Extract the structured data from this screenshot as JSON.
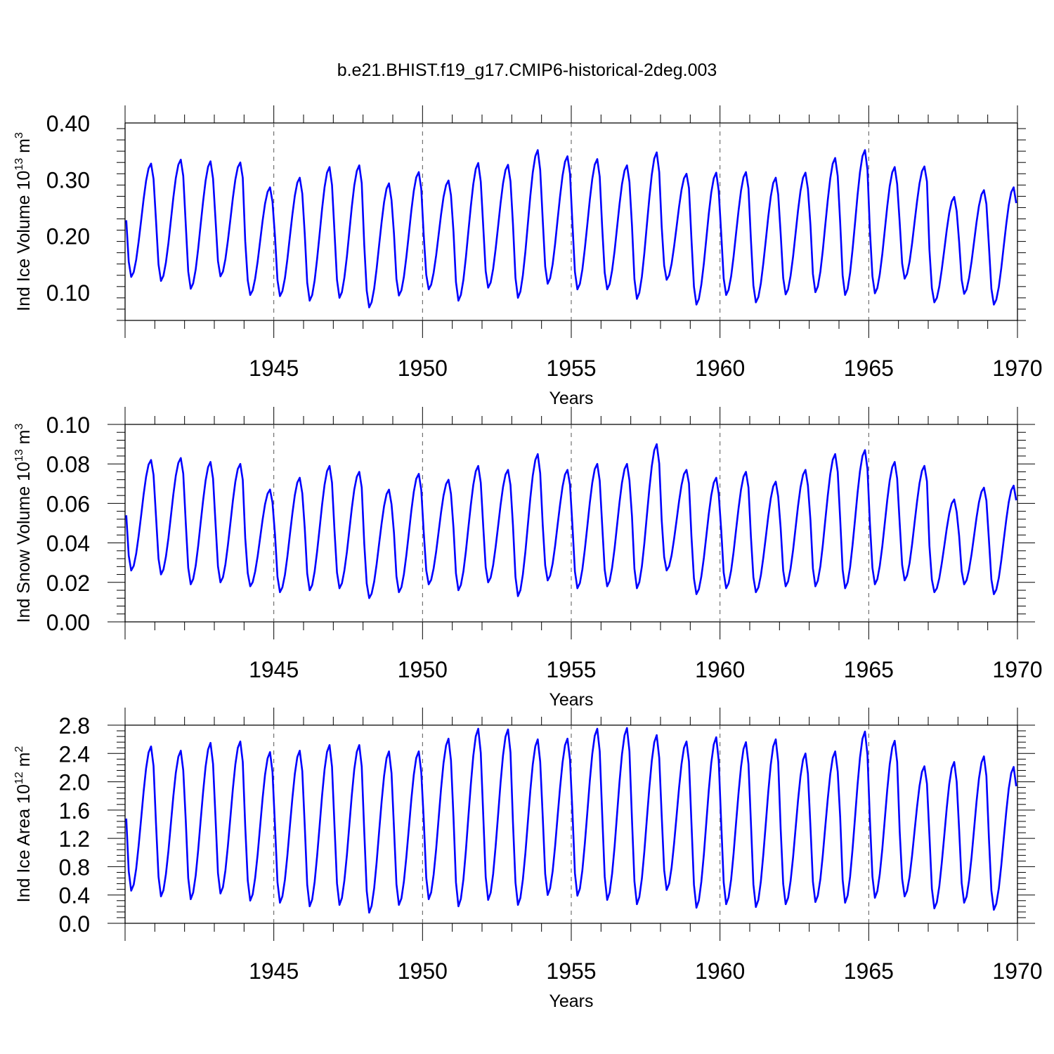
{
  "title": "b.e21.BHIST.f19_g17.CMIP6-historical-2deg.003",
  "colors": {
    "line": "#0000ff",
    "axis": "#000000",
    "refline": "#555555"
  },
  "chart_data": [
    {
      "type": "line",
      "ylabel": "Ind Ice Volume 10",
      "ylabel_exp": "13",
      "ylabel_unit": " m",
      "ylabel_unit_exp": "3",
      "xlabel": "Years",
      "xlim": [
        1940,
        1970
      ],
      "ylim": [
        0.05,
        0.4
      ],
      "yticks": [
        0.1,
        0.2,
        0.3,
        0.4
      ],
      "ytick_labels": [
        "0.10",
        "0.20",
        "0.30",
        "0.40"
      ],
      "xticks": [
        1945,
        1950,
        1955,
        1960,
        1965,
        1970
      ],
      "xtick_labels": [
        "1945",
        "1950",
        "1955",
        "1960",
        "1965",
        "1970"
      ],
      "reference_lines_x": [
        1945,
        1950,
        1955,
        1960,
        1965
      ],
      "series": [
        {
          "start_year": 1940.04,
          "step_years": 0.0833333,
          "annual_max": [
            0.328,
            0.335,
            0.332,
            0.33,
            0.286,
            0.303,
            0.322,
            0.325,
            0.293,
            0.313,
            0.298,
            0.329,
            0.326,
            0.352,
            0.341,
            0.336,
            0.325,
            0.348,
            0.31,
            0.312,
            0.313,
            0.303,
            0.312,
            0.338,
            0.352,
            0.322,
            0.323,
            0.269,
            0.281,
            0.286
          ],
          "annual_min": [
            0.127,
            0.12,
            0.106,
            0.128,
            0.095,
            0.093,
            0.085,
            0.09,
            0.073,
            0.094,
            0.105,
            0.085,
            0.108,
            0.09,
            0.115,
            0.105,
            0.105,
            0.088,
            0.122,
            0.078,
            0.095,
            0.082,
            0.096,
            0.1,
            0.095,
            0.098,
            0.124,
            0.082,
            0.097,
            0.078
          ]
        }
      ]
    },
    {
      "type": "line",
      "ylabel": "Ind Snow Volume 10",
      "ylabel_exp": "13",
      "ylabel_unit": " m",
      "ylabel_unit_exp": "3",
      "xlabel": "Years",
      "xlim": [
        1940,
        1970
      ],
      "ylim": [
        0.0,
        0.1
      ],
      "yticks": [
        0.0,
        0.02,
        0.04,
        0.06,
        0.08,
        0.1
      ],
      "ytick_labels": [
        "0.00",
        "0.02",
        "0.04",
        "0.06",
        "0.08",
        "0.10"
      ],
      "xticks": [
        1945,
        1950,
        1955,
        1960,
        1965,
        1970
      ],
      "xtick_labels": [
        "1945",
        "1950",
        "1955",
        "1960",
        "1965",
        "1970"
      ],
      "reference_lines_x": [
        1945,
        1950,
        1955,
        1960,
        1965
      ],
      "series": [
        {
          "start_year": 1940.04,
          "step_years": 0.0833333,
          "annual_max": [
            0.082,
            0.083,
            0.081,
            0.08,
            0.067,
            0.073,
            0.079,
            0.076,
            0.067,
            0.075,
            0.072,
            0.079,
            0.077,
            0.085,
            0.077,
            0.08,
            0.08,
            0.09,
            0.077,
            0.073,
            0.076,
            0.071,
            0.077,
            0.085,
            0.087,
            0.081,
            0.079,
            0.062,
            0.068,
            0.069
          ],
          "annual_min": [
            0.026,
            0.024,
            0.019,
            0.02,
            0.018,
            0.015,
            0.016,
            0.017,
            0.012,
            0.015,
            0.019,
            0.016,
            0.02,
            0.013,
            0.021,
            0.017,
            0.018,
            0.017,
            0.026,
            0.014,
            0.017,
            0.015,
            0.018,
            0.018,
            0.017,
            0.019,
            0.021,
            0.015,
            0.019,
            0.014
          ]
        }
      ]
    },
    {
      "type": "line",
      "ylabel": "Ind Ice Area 10",
      "ylabel_exp": "12",
      "ylabel_unit": " m",
      "ylabel_unit_exp": "2",
      "xlabel": "Years",
      "xlim": [
        1940,
        1970
      ],
      "ylim": [
        0.0,
        2.8
      ],
      "yticks": [
        0.0,
        0.4,
        0.8,
        1.2,
        1.6,
        2.0,
        2.4,
        2.8
      ],
      "ytick_labels": [
        "0.0",
        "0.4",
        "0.8",
        "1.2",
        "1.6",
        "2.0",
        "2.4",
        "2.8"
      ],
      "xticks": [
        1945,
        1950,
        1955,
        1960,
        1965,
        1970
      ],
      "xtick_labels": [
        "1945",
        "1950",
        "1955",
        "1960",
        "1965",
        "1970"
      ],
      "reference_lines_x": [
        1945,
        1950,
        1955,
        1960,
        1965
      ],
      "series": [
        {
          "start_year": 1940.04,
          "step_years": 0.0833333,
          "annual_max": [
            2.5,
            2.44,
            2.55,
            2.57,
            2.42,
            2.44,
            2.52,
            2.52,
            2.43,
            2.43,
            2.61,
            2.75,
            2.74,
            2.6,
            2.61,
            2.75,
            2.76,
            2.66,
            2.57,
            2.63,
            2.56,
            2.6,
            2.4,
            2.43,
            2.71,
            2.58,
            2.22,
            2.28,
            2.36,
            2.21
          ],
          "annual_min": [
            0.46,
            0.38,
            0.34,
            0.42,
            0.32,
            0.29,
            0.24,
            0.26,
            0.15,
            0.26,
            0.34,
            0.24,
            0.33,
            0.26,
            0.4,
            0.39,
            0.33,
            0.27,
            0.47,
            0.22,
            0.27,
            0.23,
            0.27,
            0.3,
            0.29,
            0.36,
            0.38,
            0.21,
            0.29,
            0.19
          ]
        }
      ]
    }
  ]
}
